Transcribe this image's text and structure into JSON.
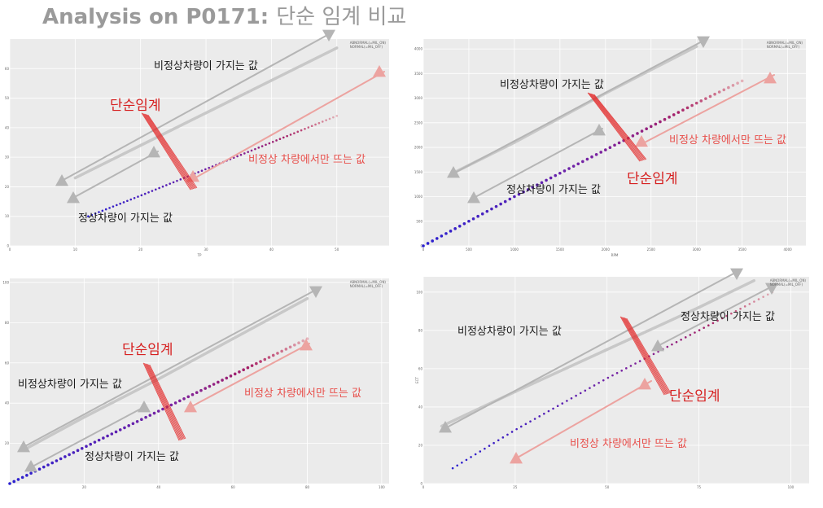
{
  "slide": {
    "title_en": "Analysis on P0171:",
    "title_ko": "단순 임계 비교"
  },
  "colors": {
    "grey_arrow": "#b5b5b5",
    "red_arrow": "#eca3a0",
    "threshold": "#e32c2c",
    "normal_low": "#2a20d0",
    "normal_high": "#c8203c",
    "abnormal_band": "#c8c8c8",
    "panel_bg": "#ebebeb"
  },
  "panels": [
    {
      "id": "tp",
      "legend": [
        "ABNORMAL(=MIL_ON)",
        "NORMAL(=MIL_OFF)"
      ],
      "annotations": {
        "abnormal": "비정상차량이 가지는 값",
        "threshold": "단순임계",
        "abnormal_only": "비정상 차량에서만 뜨는 값",
        "normal": "정상차량이 가지는 값"
      }
    },
    {
      "id": "rpm",
      "legend": [
        "ABNORMAL(=MIL_ON)",
        "NORMAL(=MIL_OFF)"
      ],
      "annotations": {
        "abnormal": "비정상차량이 가지는 값",
        "threshold": "단순임계",
        "abnormal_only": "비정상 차량에서만 뜨는 값",
        "normal": "정상차량이 가지는 값"
      }
    },
    {
      "id": "bottom-left",
      "legend": [
        "ABNORMAL(=MIL_ON)",
        "NORMAL(=MIL_OFF)"
      ],
      "annotations": {
        "abnormal": "비정상차량이 가지는 값",
        "threshold": "단순임계",
        "abnormal_only": "비정상 차량에서만 뜨는 값",
        "normal": "정상차량이 가지는 값"
      }
    },
    {
      "id": "ect",
      "legend": [
        "ABNORMAL(=MIL_ON)",
        "NORMAL(=MIL_OFF)"
      ],
      "annotations": {
        "abnormal": "비정상차량이 가지는 값",
        "threshold": "단순임계",
        "abnormal_only": "비정상 차량에서만 뜨는 값",
        "normal": "정상차량이 가지는 값"
      }
    }
  ],
  "chart_data": [
    {
      "type": "scatter",
      "xlabel": "TP",
      "ylabel": "",
      "xlim": [
        0,
        58
      ],
      "ylim": [
        0,
        70
      ],
      "x_ticks": [
        0,
        10,
        20,
        30,
        40,
        50
      ],
      "y_ticks": [
        0,
        10,
        20,
        30,
        40,
        50,
        60
      ],
      "legend_position": "top-right",
      "grid": true,
      "series": [
        {
          "name": "ABNORMAL(=MIL_ON)",
          "x": [
            10,
            20,
            30,
            40,
            50
          ],
          "y": [
            23,
            34,
            45,
            56,
            67
          ]
        },
        {
          "name": "NORMAL(=MIL_OFF)",
          "x": [
            12,
            20,
            30,
            40,
            50
          ],
          "y": [
            10,
            17,
            26,
            35,
            44
          ]
        }
      ]
    },
    {
      "type": "scatter",
      "xlabel": "RPM",
      "ylabel": "",
      "xlim": [
        0,
        4200
      ],
      "ylim": [
        0,
        4200
      ],
      "x_ticks": [
        0,
        500,
        1000,
        1500,
        2000,
        2500,
        3000,
        3500,
        4000
      ],
      "y_ticks": [
        0,
        500,
        1000,
        1500,
        2000,
        2500,
        3000,
        3500,
        4000
      ],
      "legend_position": "top-right",
      "grid": true,
      "series": [
        {
          "name": "ABNORMAL(=MIL_ON)",
          "x": [
            350,
            1000,
            2000,
            3000
          ],
          "y": [
            1500,
            2100,
            3100,
            4050
          ]
        },
        {
          "name": "NORMAL(=MIL_OFF)",
          "x": [
            0,
            500,
            1000,
            2000,
            3000,
            3500
          ],
          "y": [
            0,
            500,
            1000,
            1950,
            2900,
            3350
          ]
        }
      ]
    },
    {
      "type": "scatter",
      "xlabel": "",
      "ylabel": "",
      "xlim": [
        0,
        102
      ],
      "ylim": [
        0,
        102
      ],
      "x_ticks": [
        20,
        40,
        60,
        80,
        100
      ],
      "y_ticks": [
        20,
        40,
        60,
        80,
        100
      ],
      "legend_position": "top-right",
      "grid": true,
      "series": [
        {
          "name": "ABNORMAL(=MIL_ON)",
          "x": [
            5,
            20,
            40,
            60,
            80
          ],
          "y": [
            18,
            33,
            52,
            72,
            92
          ]
        },
        {
          "name": "NORMAL(=MIL_OFF)",
          "x": [
            0,
            20,
            40,
            60,
            80
          ],
          "y": [
            0,
            18,
            36,
            54,
            72
          ]
        }
      ]
    },
    {
      "type": "scatter",
      "xlabel": "",
      "ylabel": "ECT",
      "xlim": [
        0,
        105
      ],
      "ylim": [
        0,
        108
      ],
      "x_ticks": [
        0,
        25,
        50,
        75,
        100
      ],
      "y_ticks": [
        0,
        20,
        40,
        60,
        80,
        100
      ],
      "legend_position": "top-right",
      "grid": true,
      "series": [
        {
          "name": "ABNORMAL(=MIL_ON)",
          "x": [
            5,
            25,
            50,
            75,
            90
          ],
          "y": [
            30,
            48,
            70,
            92,
            106
          ]
        },
        {
          "name": "NORMAL(=MIL_OFF)",
          "x": [
            8,
            25,
            50,
            75,
            95
          ],
          "y": [
            8,
            28,
            55,
            80,
            100
          ]
        }
      ]
    }
  ]
}
